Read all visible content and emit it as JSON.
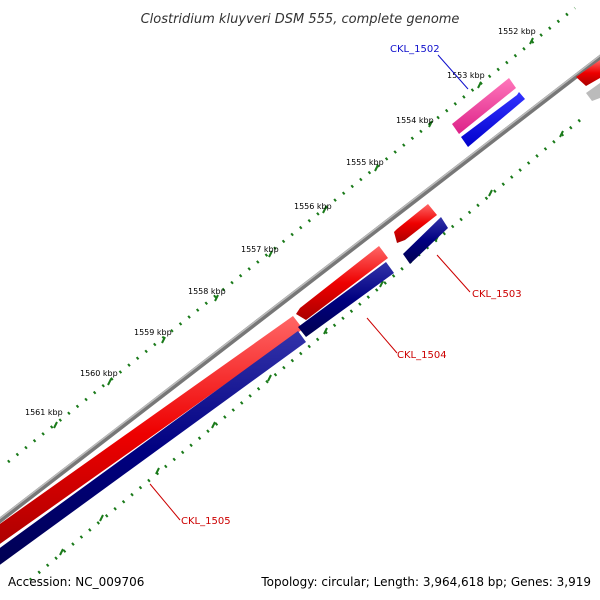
{
  "title": "Clostridium kluyveri DSM 555, complete genome",
  "footer": {
    "accession": "Accession: NC_009706",
    "summary": "Topology: circular; Length: 3,964,618 bp; Genes: 3,919"
  },
  "scale": {
    "unit": "kbp",
    "ticks": [
      {
        "label": "1552 kbp"
      },
      {
        "label": "1553 kbp"
      },
      {
        "label": "1554 kbp"
      },
      {
        "label": "1555 kbp"
      },
      {
        "label": "1556 kbp"
      },
      {
        "label": "1557 kbp"
      },
      {
        "label": "1558 kbp"
      },
      {
        "label": "1559 kbp"
      },
      {
        "label": "1560 kbp"
      },
      {
        "label": "1561 kbp"
      }
    ]
  },
  "genes": [
    {
      "label": "CKL_1502",
      "color": "#1010cc"
    },
    {
      "label": "CKL_1503",
      "color": "#cc0000"
    },
    {
      "label": "CKL_1504",
      "color": "#cc0000"
    },
    {
      "label": "CKL_1505",
      "color": "#cc0000"
    }
  ],
  "colors": {
    "backbone": "#888888",
    "forward_cds": "#ee0000",
    "reverse_cds": "#000080",
    "gene_pink": "#ee3399",
    "gene_blue": "#0000ee",
    "ticks": "#1a7a1a",
    "gray_feature": "#bbbbbb"
  }
}
